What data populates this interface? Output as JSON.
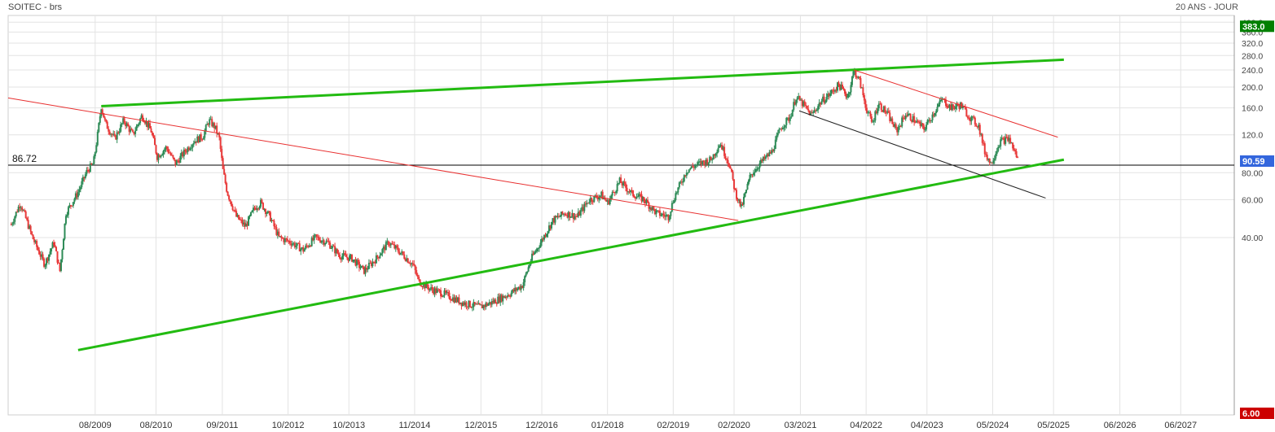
{
  "header": {
    "title": "SOITEC - brs",
    "period": "20 ANS - JOUR"
  },
  "chart_data": {
    "type": "candlestick",
    "instrument": "SOITEC - brs",
    "period": "20 ANS - JOUR",
    "x_start": "2008.15",
    "x_end": "2028.3",
    "y_scale": "log",
    "ylim": [
      6,
      430
    ],
    "yticks": [
      40.0,
      60.0,
      80.0,
      120.0,
      160.0,
      200.0,
      240.0,
      280.0,
      320.0,
      360.0,
      400.0
    ],
    "ytick_labels": [
      "40.00",
      "60.00",
      "80.00",
      "120.0",
      "160.0",
      "200.0",
      "240.0",
      "280.0",
      "320.0",
      "360.0",
      "400.0"
    ],
    "xticks": [
      {
        "label": "08/2009",
        "t": 2009.58
      },
      {
        "label": "08/2010",
        "t": 2010.58
      },
      {
        "label": "09/2011",
        "t": 2011.67
      },
      {
        "label": "10/2012",
        "t": 2012.75
      },
      {
        "label": "10/2013",
        "t": 2013.75
      },
      {
        "label": "11/2014",
        "t": 2014.83
      },
      {
        "label": "12/2015",
        "t": 2015.92
      },
      {
        "label": "12/2016",
        "t": 2016.92
      },
      {
        "label": "01/2018",
        "t": 2018.0
      },
      {
        "label": "02/2019",
        "t": 2019.08
      },
      {
        "label": "02/2020",
        "t": 2020.08
      },
      {
        "label": "03/2021",
        "t": 2021.17
      },
      {
        "label": "04/2022",
        "t": 2022.25
      },
      {
        "label": "04/2023",
        "t": 2023.25
      },
      {
        "label": "05/2024",
        "t": 2024.33
      },
      {
        "label": "05/2025",
        "t": 2025.33
      },
      {
        "label": "06/2026",
        "t": 2026.42
      },
      {
        "label": "06/2027",
        "t": 2027.42
      }
    ],
    "price_path": [
      [
        2008.2,
        46
      ],
      [
        2008.35,
        58
      ],
      [
        2008.55,
        40
      ],
      [
        2008.75,
        30
      ],
      [
        2008.9,
        38
      ],
      [
        2009.0,
        28
      ],
      [
        2009.1,
        52
      ],
      [
        2009.3,
        65
      ],
      [
        2009.45,
        82
      ],
      [
        2009.55,
        88
      ],
      [
        2009.62,
        120
      ],
      [
        2009.68,
        163
      ],
      [
        2009.75,
        135
      ],
      [
        2009.9,
        115
      ],
      [
        2010.05,
        140
      ],
      [
        2010.2,
        120
      ],
      [
        2010.35,
        148
      ],
      [
        2010.5,
        125
      ],
      [
        2010.6,
        95
      ],
      [
        2010.75,
        105
      ],
      [
        2010.9,
        88
      ],
      [
        2011.05,
        100
      ],
      [
        2011.2,
        112
      ],
      [
        2011.35,
        118
      ],
      [
        2011.45,
        140
      ],
      [
        2011.55,
        130
      ],
      [
        2011.62,
        115
      ],
      [
        2011.68,
        82
      ],
      [
        2011.75,
        65
      ],
      [
        2011.9,
        50
      ],
      [
        2012.05,
        45
      ],
      [
        2012.2,
        55
      ],
      [
        2012.3,
        58
      ],
      [
        2012.45,
        50
      ],
      [
        2012.6,
        40
      ],
      [
        2012.8,
        38
      ],
      [
        2013.0,
        35
      ],
      [
        2013.2,
        40
      ],
      [
        2013.4,
        38
      ],
      [
        2013.6,
        33
      ],
      [
        2013.8,
        32
      ],
      [
        2014.0,
        28
      ],
      [
        2014.2,
        32
      ],
      [
        2014.4,
        38
      ],
      [
        2014.6,
        34
      ],
      [
        2014.8,
        30
      ],
      [
        2014.9,
        25
      ],
      [
        2015.1,
        23
      ],
      [
        2015.3,
        22
      ],
      [
        2015.6,
        20
      ],
      [
        2015.9,
        19
      ],
      [
        2016.1,
        20
      ],
      [
        2016.4,
        22
      ],
      [
        2016.6,
        24
      ],
      [
        2016.75,
        32
      ],
      [
        2016.9,
        38
      ],
      [
        2017.1,
        48
      ],
      [
        2017.3,
        52
      ],
      [
        2017.5,
        50
      ],
      [
        2017.7,
        60
      ],
      [
        2017.9,
        63
      ],
      [
        2018.0,
        58
      ],
      [
        2018.2,
        73
      ],
      [
        2018.4,
        64
      ],
      [
        2018.6,
        60
      ],
      [
        2018.8,
        52
      ],
      [
        2019.0,
        50
      ],
      [
        2019.1,
        62
      ],
      [
        2019.3,
        82
      ],
      [
        2019.5,
        88
      ],
      [
        2019.7,
        92
      ],
      [
        2019.85,
        110
      ],
      [
        2020.0,
        88
      ],
      [
        2020.1,
        65
      ],
      [
        2020.2,
        55
      ],
      [
        2020.35,
        78
      ],
      [
        2020.5,
        88
      ],
      [
        2020.7,
        100
      ],
      [
        2020.85,
        130
      ],
      [
        2021.0,
        145
      ],
      [
        2021.1,
        180
      ],
      [
        2021.2,
        168
      ],
      [
        2021.35,
        148
      ],
      [
        2021.5,
        170
      ],
      [
        2021.65,
        185
      ],
      [
        2021.8,
        205
      ],
      [
        2021.95,
        180
      ],
      [
        2022.05,
        240
      ],
      [
        2022.15,
        210
      ],
      [
        2022.25,
        160
      ],
      [
        2022.35,
        135
      ],
      [
        2022.45,
        168
      ],
      [
        2022.6,
        150
      ],
      [
        2022.75,
        125
      ],
      [
        2022.9,
        150
      ],
      [
        2023.05,
        140
      ],
      [
        2023.2,
        128
      ],
      [
        2023.35,
        150
      ],
      [
        2023.5,
        175
      ],
      [
        2023.65,
        160
      ],
      [
        2023.8,
        165
      ],
      [
        2023.95,
        145
      ],
      [
        2024.1,
        132
      ],
      [
        2024.2,
        100
      ],
      [
        2024.3,
        88
      ],
      [
        2024.45,
        112
      ],
      [
        2024.6,
        115
      ],
      [
        2024.72,
        96
      ],
      [
        2024.75,
        90.59
      ]
    ],
    "trendlines": [
      {
        "color": "#22bb11",
        "width": 3,
        "from": [
          2009.68,
          163
        ],
        "to": [
          2025.5,
          268
        ]
      },
      {
        "color": "#22bb11",
        "width": 3,
        "from": [
          2009.3,
          12
        ],
        "to": [
          2025.5,
          92
        ]
      },
      {
        "color": "#e83030",
        "width": 1,
        "from": [
          2008.15,
          178
        ],
        "to": [
          2020.15,
          48
        ]
      },
      {
        "color": "#e83030",
        "width": 1,
        "from": [
          2022.05,
          240
        ],
        "to": [
          2025.4,
          117
        ]
      },
      {
        "color": "#222222",
        "width": 1,
        "from": [
          2021.15,
          155
        ],
        "to": [
          2025.2,
          61
        ]
      }
    ],
    "reference_line": {
      "value": 86.72,
      "label": "86.72",
      "color": "#000000"
    },
    "price_badges": [
      {
        "label": "383.0",
        "value": 383.0,
        "bg": "#008000"
      },
      {
        "label": "90.59",
        "value": 90.59,
        "bg": "#3366dd"
      },
      {
        "label": "6.00",
        "value": 6.0,
        "bg": "#cc0000"
      }
    ],
    "colors": {
      "up": "#2e8b57",
      "down": "#e83a3a",
      "grid": "#e3e3e3"
    }
  }
}
